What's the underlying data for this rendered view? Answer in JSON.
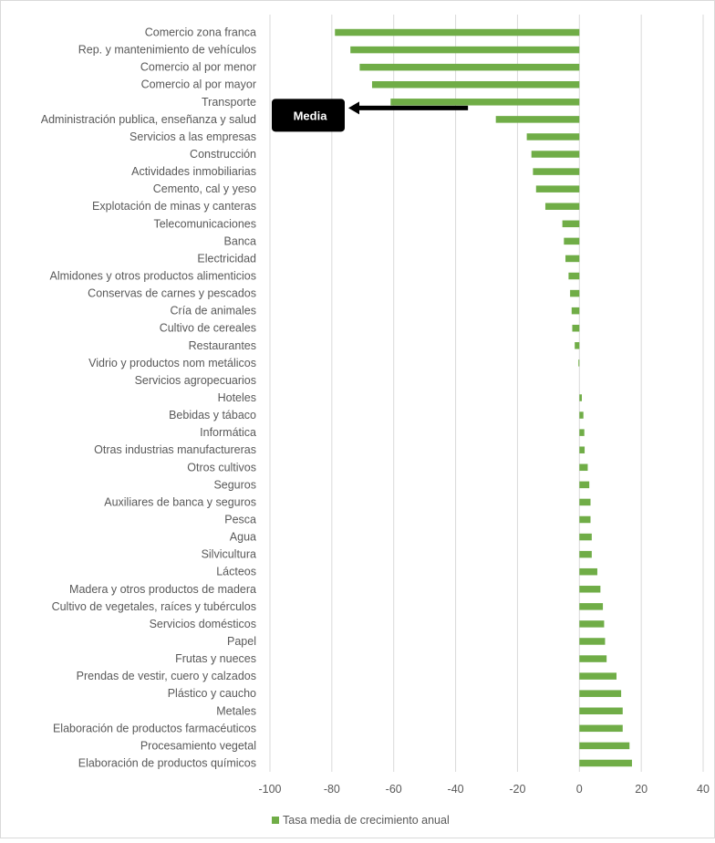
{
  "chart_data": {
    "type": "bar",
    "orientation": "horizontal",
    "categories": [
      "Comercio zona franca",
      "Rep. y mantenimiento de vehículos",
      "Comercio al por menor",
      "Comercio al por mayor",
      "Transporte",
      "Administración publica, enseñanza y salud",
      "Servicios a las empresas",
      "Construcción",
      "Actividades inmobiliarias",
      "Cemento, cal y yeso",
      "Explotación de minas y canteras",
      "Telecomunicaciones",
      "Banca",
      "Electricidad",
      "Almidones y otros productos alimenticios",
      "Conservas de carnes y pescados",
      "Cría de animales",
      "Cultivo de cereales",
      "Restaurantes",
      "Vidrio y productos nom metálicos",
      "Servicios agropecuarios",
      "Hoteles",
      "Bebidas y tábaco",
      "Informática",
      "Otras industrias manufactureras",
      "Otros cultivos",
      "Seguros",
      "Auxiliares de banca y seguros",
      "Pesca",
      "Agua",
      "Silvicultura",
      "Lácteos",
      "Madera y otros productos de madera",
      "Cultivo de vegetales, raíces y tubérculos",
      "Servicios domésticos",
      "Papel",
      "Frutas y nueces",
      "Prendas de vestir, cuero y calzados",
      "Plástico y caucho",
      "Metales",
      "Elaboración de productos farmacéuticos",
      "Procesamiento vegetal",
      "Elaboración de productos químicos"
    ],
    "series": [
      {
        "name": "Tasa media de crecimiento anual",
        "color": "#70AD47",
        "values": [
          -79,
          -74,
          -71,
          -67,
          -61,
          -27,
          -17,
          -15.5,
          -15,
          -14,
          -11,
          -5.5,
          -5,
          -4.5,
          -3.5,
          -3,
          -2.5,
          -2.3,
          -1.5,
          -0.3,
          0,
          0.8,
          1.3,
          1.6,
          1.7,
          2.7,
          3.2,
          3.6,
          3.6,
          4,
          4,
          5.8,
          6.8,
          7.6,
          8,
          8.3,
          8.8,
          12,
          13.5,
          14,
          14,
          16.2,
          17
        ]
      }
    ],
    "xlim": [
      -100,
      40
    ],
    "xticks": [
      -100,
      -80,
      -60,
      -40,
      -20,
      0,
      20,
      40
    ],
    "grid": true,
    "legend": {
      "position": "bottom",
      "label": "Tasa media de crecimiento anual"
    },
    "annotation": {
      "text": "Media",
      "points_to": "Transporte",
      "value": -36
    }
  }
}
